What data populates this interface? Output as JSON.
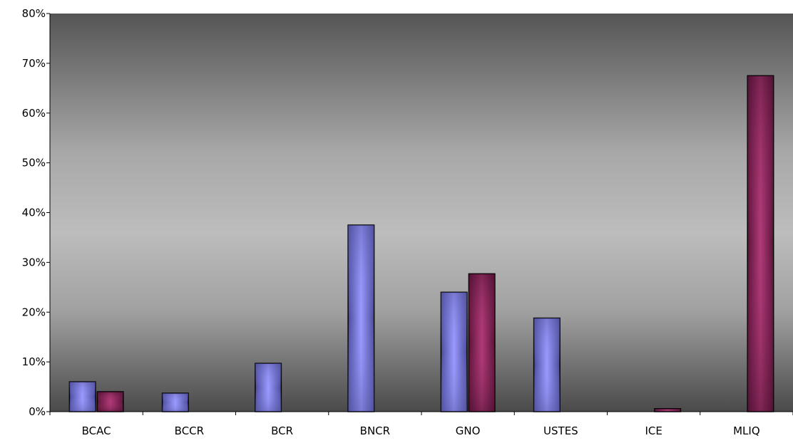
{
  "chart_data": {
    "type": "bar",
    "title": "",
    "xlabel": "",
    "ylabel": "",
    "categories": [
      "BCAC",
      "BCCR",
      "BCR",
      "BNCR",
      "GNO",
      "USTES",
      "ICE",
      "MLIQ"
    ],
    "series": [
      {
        "values": [
          6,
          3.7,
          9.7,
          37.5,
          24,
          18.8,
          null,
          null
        ],
        "color": "#8a8ae0"
      },
      {
        "values": [
          4,
          null,
          null,
          null,
          27.7,
          null,
          0.6,
          67.5
        ],
        "color": "#9a2c62"
      }
    ],
    "ylim": [
      0,
      80
    ],
    "yticks": [
      0,
      10,
      20,
      30,
      40,
      50,
      60,
      70,
      80
    ],
    "ytick_suffix": "%",
    "grid": false,
    "legend": "none",
    "plot_background": "gray vertical gradient (dark top, light middle, dark bottom)"
  }
}
